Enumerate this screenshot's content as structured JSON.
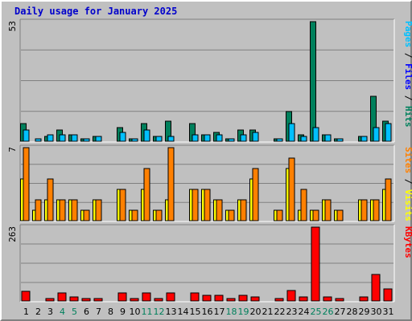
{
  "chart_data": {
    "type": "bar",
    "title": "Daily usage for January 2025",
    "categories": [
      "1",
      "2",
      "3",
      "4",
      "5",
      "6",
      "7",
      "8",
      "9",
      "10",
      "11",
      "12",
      "13",
      "14",
      "15",
      "16",
      "17",
      "18",
      "19",
      "20",
      "21",
      "22",
      "23",
      "24",
      "25",
      "26",
      "27",
      "28",
      "29",
      "30",
      "31"
    ],
    "weekend_days": [
      "4",
      "5",
      "11",
      "12",
      "18",
      "19",
      "25",
      "26"
    ],
    "colors": {
      "hits": "#00805c",
      "files": "#0000ff",
      "pages": "#00c0ff",
      "visits": "#ffff00",
      "sites": "#ff8000",
      "kbytes": "#ff0000",
      "weekday_label": "#000000",
      "weekend_label": "#00805c",
      "title": "#0000cc"
    },
    "panels": [
      {
        "id": "hits",
        "ymax_label": "53",
        "ylim": [
          0,
          53
        ],
        "legend": [
          {
            "text": "Pages",
            "color": "#00c0ff"
          },
          {
            "text": " / ",
            "color": "#000000"
          },
          {
            "text": "Files",
            "color": "#0000ff"
          },
          {
            "text": " / ",
            "color": "#000000"
          },
          {
            "text": "Hits",
            "color": "#00805c"
          }
        ],
        "series": [
          {
            "name": "Hits",
            "color": "#00805c",
            "values": [
              8,
              0,
              2,
              5,
              3,
              1,
              2,
              0,
              6,
              1,
              8,
              2,
              9,
              0,
              8,
              3,
              4,
              1,
              5,
              5,
              0,
              1,
              13,
              3,
              53,
              3,
              1,
              0,
              2,
              20,
              9
            ]
          },
          {
            "name": "Files",
            "color": "#0000ff",
            "values": [
              0,
              0,
              0,
              0,
              0,
              0,
              0,
              0,
              0,
              0,
              0,
              0,
              0,
              0,
              0,
              0,
              0,
              0,
              0,
              0,
              0,
              0,
              0,
              0,
              0,
              0,
              0,
              0,
              0,
              0,
              0
            ]
          },
          {
            "name": "Pages",
            "color": "#00c0ff",
            "values": [
              5,
              1,
              3,
              3,
              3,
              1,
              2,
              0,
              4,
              1,
              5,
              2,
              2,
              0,
              3,
              3,
              3,
              1,
              3,
              4,
              0,
              1,
              8,
              2,
              6,
              3,
              1,
              0,
              2,
              6,
              8
            ]
          }
        ]
      },
      {
        "id": "visits",
        "ymax_label": "7",
        "ylim": [
          0,
          7
        ],
        "legend": [
          {
            "text": "Sites",
            "color": "#ff8000"
          },
          {
            "text": " / ",
            "color": "#000000"
          },
          {
            "text": "Visits",
            "color": "#ffff00"
          }
        ],
        "series": [
          {
            "name": "Visits",
            "color": "#ffff00",
            "values": [
              4,
              1,
              2,
              2,
              2,
              1,
              2,
              0,
              3,
              1,
              3,
              1,
              2,
              0,
              3,
              3,
              2,
              1,
              2,
              4,
              0,
              1,
              5,
              1,
              1,
              2,
              1,
              0,
              2,
              2,
              3
            ]
          },
          {
            "name": "Sites",
            "color": "#ff8000",
            "values": [
              7,
              2,
              4,
              2,
              2,
              1,
              2,
              0,
              3,
              1,
              5,
              1,
              7,
              0,
              3,
              3,
              2,
              1,
              2,
              5,
              0,
              1,
              6,
              3,
              1,
              2,
              1,
              0,
              2,
              2,
              4
            ]
          }
        ]
      },
      {
        "id": "kbytes",
        "ymax_label": "263",
        "ylim": [
          0,
          263
        ],
        "legend": [
          {
            "text": "KBytes",
            "color": "#ff0000"
          }
        ],
        "series": [
          {
            "name": "KBytes",
            "color": "#ff0000",
            "values": [
              33,
              0,
              8,
              28,
              15,
              8,
              8,
              0,
              30,
              8,
              28,
              8,
              28,
              0,
              28,
              20,
              20,
              8,
              20,
              15,
              0,
              8,
              38,
              15,
              263,
              15,
              8,
              0,
              15,
              95,
              42
            ]
          }
        ]
      }
    ]
  }
}
